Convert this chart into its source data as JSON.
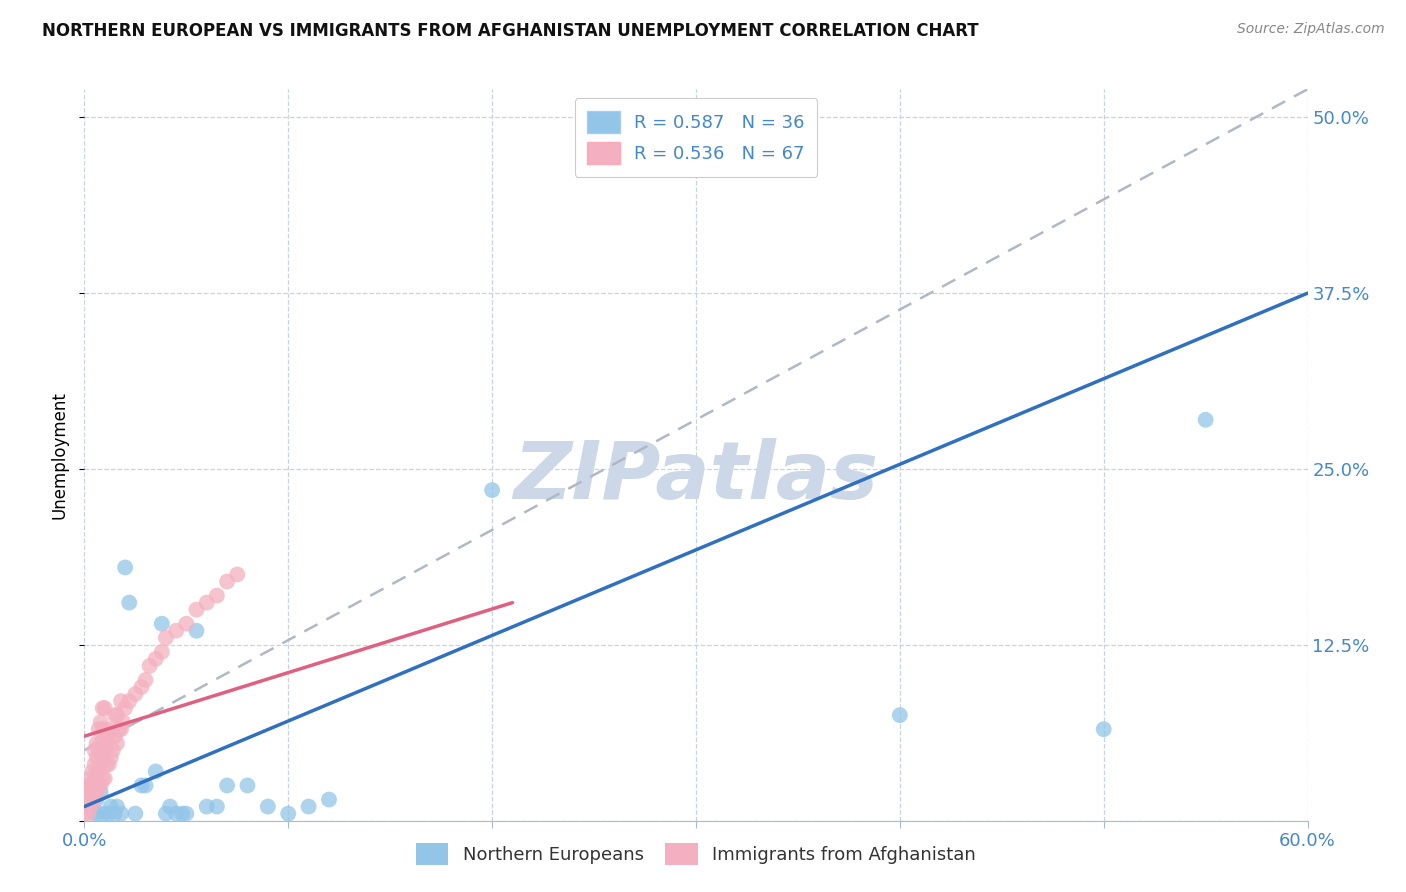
{
  "title": "NORTHERN EUROPEAN VS IMMIGRANTS FROM AFGHANISTAN UNEMPLOYMENT CORRELATION CHART",
  "source": "Source: ZipAtlas.com",
  "ylabel": "Unemployment",
  "xlim": [
    0.0,
    0.6
  ],
  "ylim": [
    0.0,
    0.52
  ],
  "xticks": [
    0.0,
    0.1,
    0.2,
    0.3,
    0.4,
    0.5,
    0.6
  ],
  "yticks": [
    0.0,
    0.125,
    0.25,
    0.375,
    0.5
  ],
  "xticklabels": [
    "0.0%",
    "",
    "",
    "",
    "",
    "",
    "60.0%"
  ],
  "yticklabels": [
    "",
    "12.5%",
    "25.0%",
    "37.5%",
    "50.0%"
  ],
  "blue_R": 0.587,
  "blue_N": 36,
  "pink_R": 0.536,
  "pink_N": 67,
  "blue_scatter_color": "#92c5e8",
  "pink_scatter_color": "#f4b0c0",
  "blue_line_color": "#3070c0",
  "pink_line_color": "#e06080",
  "gray_dash_color": "#b0b8c8",
  "watermark": "ZIPatlas",
  "watermark_color": "#ccd8e8",
  "grid_color": "#c8d4e0",
  "title_fontsize": 12,
  "tick_fontsize": 13,
  "legend_fontsize": 13,
  "blue_scatter": [
    [
      0.003,
      0.025
    ],
    [
      0.005,
      0.005
    ],
    [
      0.006,
      0.015
    ],
    [
      0.007,
      0.005
    ],
    [
      0.008,
      0.02
    ],
    [
      0.01,
      0.005
    ],
    [
      0.012,
      0.005
    ],
    [
      0.013,
      0.01
    ],
    [
      0.015,
      0.005
    ],
    [
      0.016,
      0.01
    ],
    [
      0.018,
      0.005
    ],
    [
      0.02,
      0.18
    ],
    [
      0.022,
      0.155
    ],
    [
      0.025,
      0.005
    ],
    [
      0.028,
      0.025
    ],
    [
      0.03,
      0.025
    ],
    [
      0.035,
      0.035
    ],
    [
      0.038,
      0.14
    ],
    [
      0.04,
      0.005
    ],
    [
      0.042,
      0.01
    ],
    [
      0.045,
      0.005
    ],
    [
      0.048,
      0.005
    ],
    [
      0.05,
      0.005
    ],
    [
      0.055,
      0.135
    ],
    [
      0.06,
      0.01
    ],
    [
      0.065,
      0.01
    ],
    [
      0.07,
      0.025
    ],
    [
      0.08,
      0.025
    ],
    [
      0.09,
      0.01
    ],
    [
      0.1,
      0.005
    ],
    [
      0.11,
      0.01
    ],
    [
      0.12,
      0.015
    ],
    [
      0.2,
      0.235
    ],
    [
      0.4,
      0.075
    ],
    [
      0.5,
      0.065
    ],
    [
      0.55,
      0.285
    ]
  ],
  "pink_scatter": [
    [
      0.0,
      0.005
    ],
    [
      0.001,
      0.01
    ],
    [
      0.001,
      0.02
    ],
    [
      0.002,
      0.005
    ],
    [
      0.002,
      0.015
    ],
    [
      0.002,
      0.025
    ],
    [
      0.003,
      0.01
    ],
    [
      0.003,
      0.02
    ],
    [
      0.003,
      0.03
    ],
    [
      0.004,
      0.015
    ],
    [
      0.004,
      0.025
    ],
    [
      0.004,
      0.035
    ],
    [
      0.005,
      0.015
    ],
    [
      0.005,
      0.025
    ],
    [
      0.005,
      0.04
    ],
    [
      0.005,
      0.05
    ],
    [
      0.006,
      0.02
    ],
    [
      0.006,
      0.03
    ],
    [
      0.006,
      0.045
    ],
    [
      0.006,
      0.055
    ],
    [
      0.007,
      0.025
    ],
    [
      0.007,
      0.035
    ],
    [
      0.007,
      0.05
    ],
    [
      0.007,
      0.065
    ],
    [
      0.008,
      0.025
    ],
    [
      0.008,
      0.04
    ],
    [
      0.008,
      0.055
    ],
    [
      0.008,
      0.07
    ],
    [
      0.009,
      0.03
    ],
    [
      0.009,
      0.045
    ],
    [
      0.009,
      0.065
    ],
    [
      0.009,
      0.08
    ],
    [
      0.01,
      0.03
    ],
    [
      0.01,
      0.05
    ],
    [
      0.01,
      0.065
    ],
    [
      0.01,
      0.08
    ],
    [
      0.011,
      0.04
    ],
    [
      0.011,
      0.055
    ],
    [
      0.012,
      0.04
    ],
    [
      0.012,
      0.06
    ],
    [
      0.013,
      0.045
    ],
    [
      0.013,
      0.065
    ],
    [
      0.014,
      0.05
    ],
    [
      0.015,
      0.06
    ],
    [
      0.015,
      0.075
    ],
    [
      0.016,
      0.055
    ],
    [
      0.016,
      0.075
    ],
    [
      0.017,
      0.065
    ],
    [
      0.018,
      0.065
    ],
    [
      0.018,
      0.085
    ],
    [
      0.019,
      0.07
    ],
    [
      0.02,
      0.08
    ],
    [
      0.022,
      0.085
    ],
    [
      0.025,
      0.09
    ],
    [
      0.028,
      0.095
    ],
    [
      0.03,
      0.1
    ],
    [
      0.032,
      0.11
    ],
    [
      0.035,
      0.115
    ],
    [
      0.038,
      0.12
    ],
    [
      0.04,
      0.13
    ],
    [
      0.045,
      0.135
    ],
    [
      0.05,
      0.14
    ],
    [
      0.055,
      0.15
    ],
    [
      0.06,
      0.155
    ],
    [
      0.065,
      0.16
    ],
    [
      0.07,
      0.17
    ],
    [
      0.075,
      0.175
    ]
  ],
  "blue_line": {
    "x0": 0.0,
    "y0": 0.01,
    "x1": 0.6,
    "y1": 0.375
  },
  "gray_dash_line": {
    "x0": 0.0,
    "y0": 0.05,
    "x1": 0.6,
    "y1": 0.52
  },
  "pink_line": {
    "x0": 0.0,
    "y0": 0.06,
    "x1": 0.21,
    "y1": 0.155
  }
}
